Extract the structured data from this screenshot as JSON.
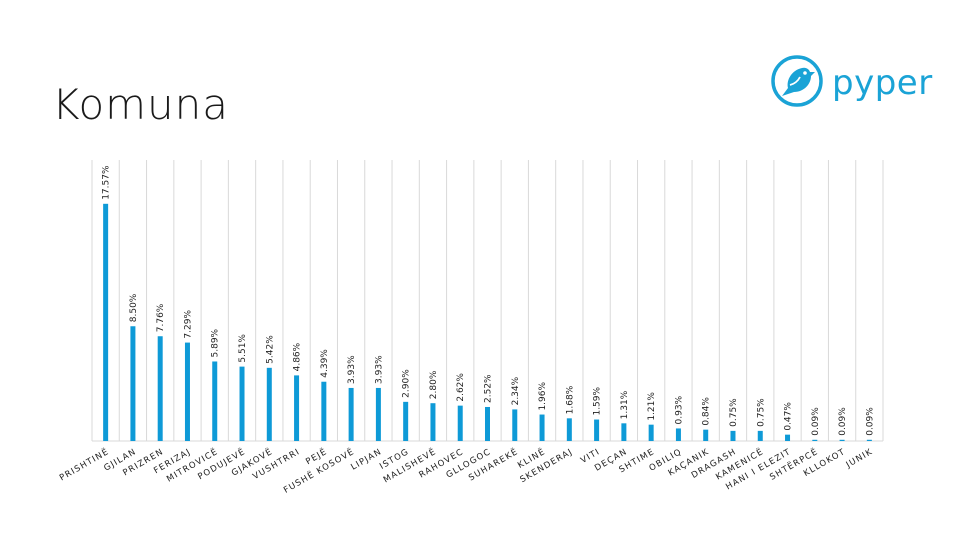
{
  "header": {
    "title": "Komuna",
    "brand": "pyper"
  },
  "colors": {
    "bar": "#0e9ad7",
    "grid": "#d9d9d9",
    "brand": "#1aa3d6"
  },
  "icons": {
    "logo": "bird-in-circle-icon"
  },
  "chart_data": {
    "type": "bar",
    "title": "",
    "xlabel": "",
    "ylabel": "",
    "grid": "vertical",
    "ylim": [
      0,
      20
    ],
    "categories": [
      "PRISHTINË",
      "GJILAN",
      "PRIZREN",
      "FERIZAJ",
      "MITROVICË",
      "PODUJEVË",
      "GJAKOVË",
      "VUSHTRRI",
      "PEJË",
      "FUSHË KOSOVË",
      "LIPJAN",
      "ISTOG",
      "MALISHEVË",
      "RAHOVEC",
      "GLLOGOC",
      "SUHAREKË",
      "KLINË",
      "SKENDERAJ",
      "VITI",
      "DEÇAN",
      "SHTIME",
      "OBILIQ",
      "KAÇANIK",
      "DRAGASH",
      "KAMENICË",
      "HANI I ELEZIT",
      "SHTËRPCË",
      "KLLOKOT",
      "JUNIK"
    ],
    "values": [
      17.57,
      8.5,
      7.76,
      7.29,
      5.89,
      5.51,
      5.42,
      4.86,
      4.39,
      3.93,
      3.93,
      2.9,
      2.8,
      2.62,
      2.52,
      2.34,
      1.96,
      1.68,
      1.59,
      1.31,
      1.21,
      0.93,
      0.84,
      0.75,
      0.75,
      0.47,
      0.09,
      0.09,
      0.09
    ],
    "labels": [
      "17.57%",
      "8.50%",
      "7.76%",
      "7.29%",
      "5.89%",
      "5.51%",
      "5.42%",
      "4.86%",
      "4.39%",
      "3.93%",
      "3.93%",
      "2.90%",
      "2.80%",
      "2.62%",
      "2.52%",
      "2.34%",
      "1.96%",
      "1.68%",
      "1.59%",
      "1.31%",
      "1.21%",
      "0.93%",
      "0.84%",
      "0.75%",
      "0.75%",
      "0.47%",
      "0.09%",
      "0.09%",
      "0.09%"
    ]
  }
}
